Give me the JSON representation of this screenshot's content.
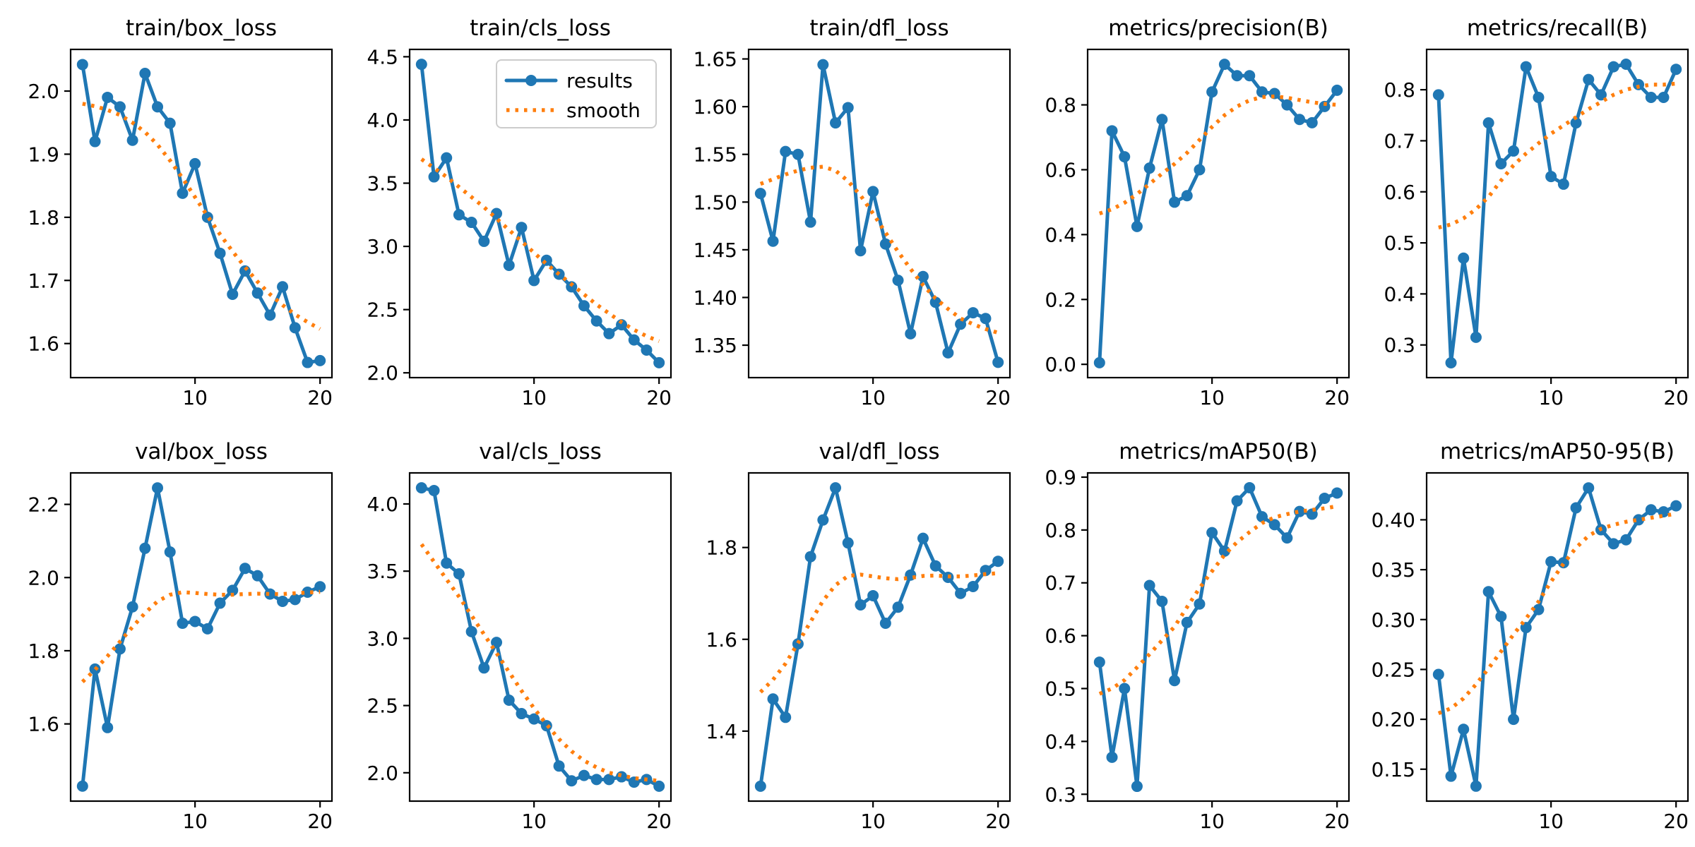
{
  "figure": {
    "background": "#ffffff",
    "epochs": [
      1,
      2,
      3,
      4,
      5,
      6,
      7,
      8,
      9,
      10,
      11,
      12,
      13,
      14,
      15,
      16,
      17,
      18,
      19,
      20
    ],
    "xlim": [
      0.05,
      20.95
    ],
    "xticks": {
      "values": [
        10,
        20
      ],
      "labels": [
        "10",
        "20"
      ]
    },
    "colors": {
      "results": "#1f77b4",
      "smooth": "#ff7f0e",
      "axis": "#000000",
      "legend_border": "#cccccc"
    },
    "legend": {
      "host_chart": "train/cls_loss",
      "position": "upper right",
      "entries": [
        {
          "label": "results",
          "style": "solid-line-with-marker"
        },
        {
          "label": "smooth",
          "style": "dotted-line"
        }
      ]
    }
  },
  "chart_data": [
    {
      "type": "line",
      "title": "train/box_loss",
      "grid": false,
      "legend": false,
      "ylim": [
        1.546,
        2.066
      ],
      "yticks": {
        "values": [
          1.6,
          1.7,
          1.8,
          1.9,
          2.0
        ],
        "labels": [
          "1.6",
          "1.7",
          "1.8",
          "1.9",
          "2.0"
        ]
      },
      "series": [
        {
          "name": "results",
          "values": [
            2.042,
            1.92,
            1.99,
            1.975,
            1.922,
            2.028,
            1.975,
            1.949,
            1.838,
            1.885,
            1.8,
            1.743,
            1.678,
            1.715,
            1.68,
            1.645,
            1.69,
            1.625,
            1.57,
            1.573
          ]
        },
        {
          "name": "smooth",
          "values": [
            1.98,
            1.976,
            1.97,
            1.962,
            1.95,
            1.935,
            1.915,
            1.89,
            1.862,
            1.832,
            1.802,
            1.773,
            1.746,
            1.721,
            1.698,
            1.678,
            1.661,
            1.646,
            1.634,
            1.623
          ]
        }
      ]
    },
    {
      "type": "line",
      "title": "train/cls_loss",
      "grid": false,
      "legend": true,
      "ylim": [
        1.962,
        4.558
      ],
      "yticks": {
        "values": [
          2.0,
          2.5,
          3.0,
          3.5,
          4.0,
          4.5
        ],
        "labels": [
          "2.0",
          "2.5",
          "3.0",
          "3.5",
          "4.0",
          "4.5"
        ]
      },
      "series": [
        {
          "name": "results",
          "values": [
            4.44,
            3.55,
            3.7,
            3.25,
            3.19,
            3.04,
            3.26,
            2.85,
            3.15,
            2.73,
            2.89,
            2.78,
            2.68,
            2.53,
            2.41,
            2.31,
            2.38,
            2.26,
            2.18,
            2.08
          ]
        },
        {
          "name": "smooth",
          "values": [
            3.69,
            3.62,
            3.55,
            3.47,
            3.39,
            3.31,
            3.22,
            3.13,
            3.04,
            2.95,
            2.86,
            2.78,
            2.7,
            2.62,
            2.54,
            2.47,
            2.4,
            2.34,
            2.29,
            2.25
          ]
        }
      ]
    },
    {
      "type": "line",
      "title": "train/dfl_loss",
      "grid": false,
      "legend": false,
      "ylim": [
        1.316,
        1.66
      ],
      "yticks": {
        "values": [
          1.35,
          1.4,
          1.45,
          1.5,
          1.55,
          1.6,
          1.65
        ],
        "labels": [
          "1.35",
          "1.40",
          "1.45",
          "1.50",
          "1.55",
          "1.60",
          "1.65"
        ]
      },
      "series": [
        {
          "name": "results",
          "values": [
            1.509,
            1.459,
            1.553,
            1.55,
            1.479,
            1.644,
            1.583,
            1.599,
            1.449,
            1.511,
            1.456,
            1.418,
            1.362,
            1.422,
            1.395,
            1.342,
            1.372,
            1.384,
            1.378,
            1.332
          ]
        },
        {
          "name": "smooth",
          "values": [
            1.519,
            1.524,
            1.529,
            1.533,
            1.536,
            1.537,
            1.533,
            1.522,
            1.507,
            1.488,
            1.468,
            1.448,
            1.43,
            1.413,
            1.399,
            1.388,
            1.378,
            1.372,
            1.367,
            1.363
          ]
        }
      ]
    },
    {
      "type": "line",
      "title": "metrics/precision(B)",
      "grid": false,
      "legend": false,
      "ylim": [
        -0.041,
        0.971
      ],
      "yticks": {
        "values": [
          0.0,
          0.2,
          0.4,
          0.6,
          0.8
        ],
        "labels": [
          "0.0",
          "0.2",
          "0.4",
          "0.6",
          "0.8"
        ]
      },
      "series": [
        {
          "name": "results",
          "values": [
            0.005,
            0.72,
            0.64,
            0.425,
            0.605,
            0.755,
            0.5,
            0.52,
            0.6,
            0.84,
            0.925,
            0.89,
            0.89,
            0.84,
            0.835,
            0.8,
            0.755,
            0.745,
            0.795,
            0.845
          ]
        },
        {
          "name": "smooth",
          "values": [
            0.465,
            0.478,
            0.498,
            0.525,
            0.556,
            0.588,
            0.618,
            0.652,
            0.692,
            0.732,
            0.768,
            0.795,
            0.814,
            0.824,
            0.826,
            0.822,
            0.815,
            0.808,
            0.803,
            0.8
          ]
        }
      ]
    },
    {
      "type": "line",
      "title": "metrics/recall(B)",
      "grid": false,
      "legend": false,
      "ylim": [
        0.236,
        0.879
      ],
      "yticks": {
        "values": [
          0.3,
          0.4,
          0.5,
          0.6,
          0.7,
          0.8
        ],
        "labels": [
          "0.3",
          "0.4",
          "0.5",
          "0.6",
          "0.7",
          "0.8"
        ]
      },
      "series": [
        {
          "name": "results",
          "values": [
            0.79,
            0.265,
            0.47,
            0.315,
            0.735,
            0.655,
            0.68,
            0.845,
            0.785,
            0.63,
            0.615,
            0.735,
            0.82,
            0.79,
            0.845,
            0.85,
            0.81,
            0.785,
            0.785,
            0.84
          ]
        },
        {
          "name": "smooth",
          "values": [
            0.53,
            0.536,
            0.548,
            0.566,
            0.59,
            0.622,
            0.652,
            0.675,
            0.695,
            0.714,
            0.73,
            0.746,
            0.762,
            0.776,
            0.79,
            0.8,
            0.806,
            0.81,
            0.81,
            0.812
          ]
        }
      ]
    },
    {
      "type": "line",
      "title": "val/box_loss",
      "grid": false,
      "legend": false,
      "ylim": [
        1.389,
        2.286
      ],
      "yticks": {
        "values": [
          1.6,
          1.8,
          2.0,
          2.2
        ],
        "labels": [
          "1.6",
          "1.8",
          "2.0",
          "2.2"
        ]
      },
      "series": [
        {
          "name": "results",
          "values": [
            1.43,
            1.75,
            1.59,
            1.805,
            1.92,
            2.08,
            2.245,
            2.07,
            1.875,
            1.88,
            1.86,
            1.93,
            1.965,
            2.025,
            2.005,
            1.955,
            1.935,
            1.94,
            1.96,
            1.975
          ]
        },
        {
          "name": "smooth",
          "values": [
            1.715,
            1.748,
            1.785,
            1.825,
            1.865,
            1.903,
            1.935,
            1.953,
            1.96,
            1.958,
            1.955,
            1.953,
            1.953,
            1.955,
            1.956,
            1.955,
            1.955,
            1.957,
            1.959,
            1.961
          ]
        }
      ]
    },
    {
      "type": "line",
      "title": "val/cls_loss",
      "grid": false,
      "legend": false,
      "ylim": [
        1.789,
        4.231
      ],
      "yticks": {
        "values": [
          2.0,
          2.5,
          3.0,
          3.5,
          4.0
        ],
        "labels": [
          "2.0",
          "2.5",
          "3.0",
          "3.5",
          "4.0"
        ]
      },
      "series": [
        {
          "name": "results",
          "values": [
            4.12,
            4.1,
            3.56,
            3.48,
            3.05,
            2.78,
            2.97,
            2.54,
            2.44,
            2.4,
            2.35,
            2.05,
            1.94,
            1.98,
            1.95,
            1.95,
            1.97,
            1.93,
            1.95,
            1.9
          ]
        },
        {
          "name": "smooth",
          "values": [
            3.7,
            3.57,
            3.44,
            3.31,
            3.17,
            3.03,
            2.89,
            2.75,
            2.61,
            2.48,
            2.36,
            2.25,
            2.16,
            2.09,
            2.04,
            2.0,
            1.98,
            1.96,
            1.95,
            1.94
          ]
        }
      ]
    },
    {
      "type": "line",
      "title": "val/dfl_loss",
      "grid": false,
      "legend": false,
      "ylim": [
        1.2475,
        1.9625
      ],
      "yticks": {
        "values": [
          1.4,
          1.6,
          1.8
        ],
        "labels": [
          "1.4",
          "1.6",
          "1.8"
        ]
      },
      "series": [
        {
          "name": "results",
          "values": [
            1.28,
            1.47,
            1.43,
            1.59,
            1.78,
            1.86,
            1.93,
            1.81,
            1.675,
            1.695,
            1.635,
            1.67,
            1.74,
            1.82,
            1.76,
            1.735,
            1.7,
            1.715,
            1.75,
            1.77
          ]
        },
        {
          "name": "smooth",
          "values": [
            1.485,
            1.512,
            1.547,
            1.592,
            1.638,
            1.684,
            1.718,
            1.738,
            1.741,
            1.737,
            1.733,
            1.731,
            1.734,
            1.738,
            1.739,
            1.737,
            1.737,
            1.739,
            1.742,
            1.744
          ]
        }
      ]
    },
    {
      "type": "line",
      "title": "metrics/mAP50(B)",
      "grid": false,
      "legend": false,
      "ylim": [
        0.287,
        0.908
      ],
      "yticks": {
        "values": [
          0.3,
          0.4,
          0.5,
          0.6,
          0.7,
          0.8,
          0.9
        ],
        "labels": [
          "0.3",
          "0.4",
          "0.5",
          "0.6",
          "0.7",
          "0.8",
          "0.9"
        ]
      },
      "series": [
        {
          "name": "results",
          "values": [
            0.55,
            0.37,
            0.5,
            0.315,
            0.695,
            0.665,
            0.515,
            0.625,
            0.66,
            0.795,
            0.76,
            0.855,
            0.88,
            0.825,
            0.81,
            0.785,
            0.835,
            0.83,
            0.86,
            0.87
          ]
        },
        {
          "name": "smooth",
          "values": [
            0.49,
            0.5,
            0.516,
            0.54,
            0.565,
            0.591,
            0.617,
            0.654,
            0.69,
            0.722,
            0.753,
            0.777,
            0.796,
            0.813,
            0.824,
            0.83,
            0.835,
            0.838,
            0.841,
            0.845
          ]
        }
      ]
    },
    {
      "type": "line",
      "title": "metrics/mAP50-95(B)",
      "grid": false,
      "legend": false,
      "ylim": [
        0.118,
        0.447
      ],
      "yticks": {
        "values": [
          0.15,
          0.2,
          0.25,
          0.3,
          0.35,
          0.4
        ],
        "labels": [
          "0.15",
          "0.20",
          "0.25",
          "0.30",
          "0.35",
          "0.40"
        ]
      },
      "series": [
        {
          "name": "results",
          "values": [
            0.245,
            0.143,
            0.19,
            0.133,
            0.328,
            0.303,
            0.2,
            0.292,
            0.31,
            0.358,
            0.357,
            0.412,
            0.432,
            0.39,
            0.376,
            0.38,
            0.4,
            0.41,
            0.408,
            0.414
          ]
        },
        {
          "name": "smooth",
          "values": [
            0.206,
            0.211,
            0.221,
            0.235,
            0.251,
            0.268,
            0.285,
            0.301,
            0.318,
            0.338,
            0.356,
            0.372,
            0.384,
            0.391,
            0.395,
            0.398,
            0.4,
            0.402,
            0.404,
            0.406
          ]
        }
      ]
    }
  ]
}
